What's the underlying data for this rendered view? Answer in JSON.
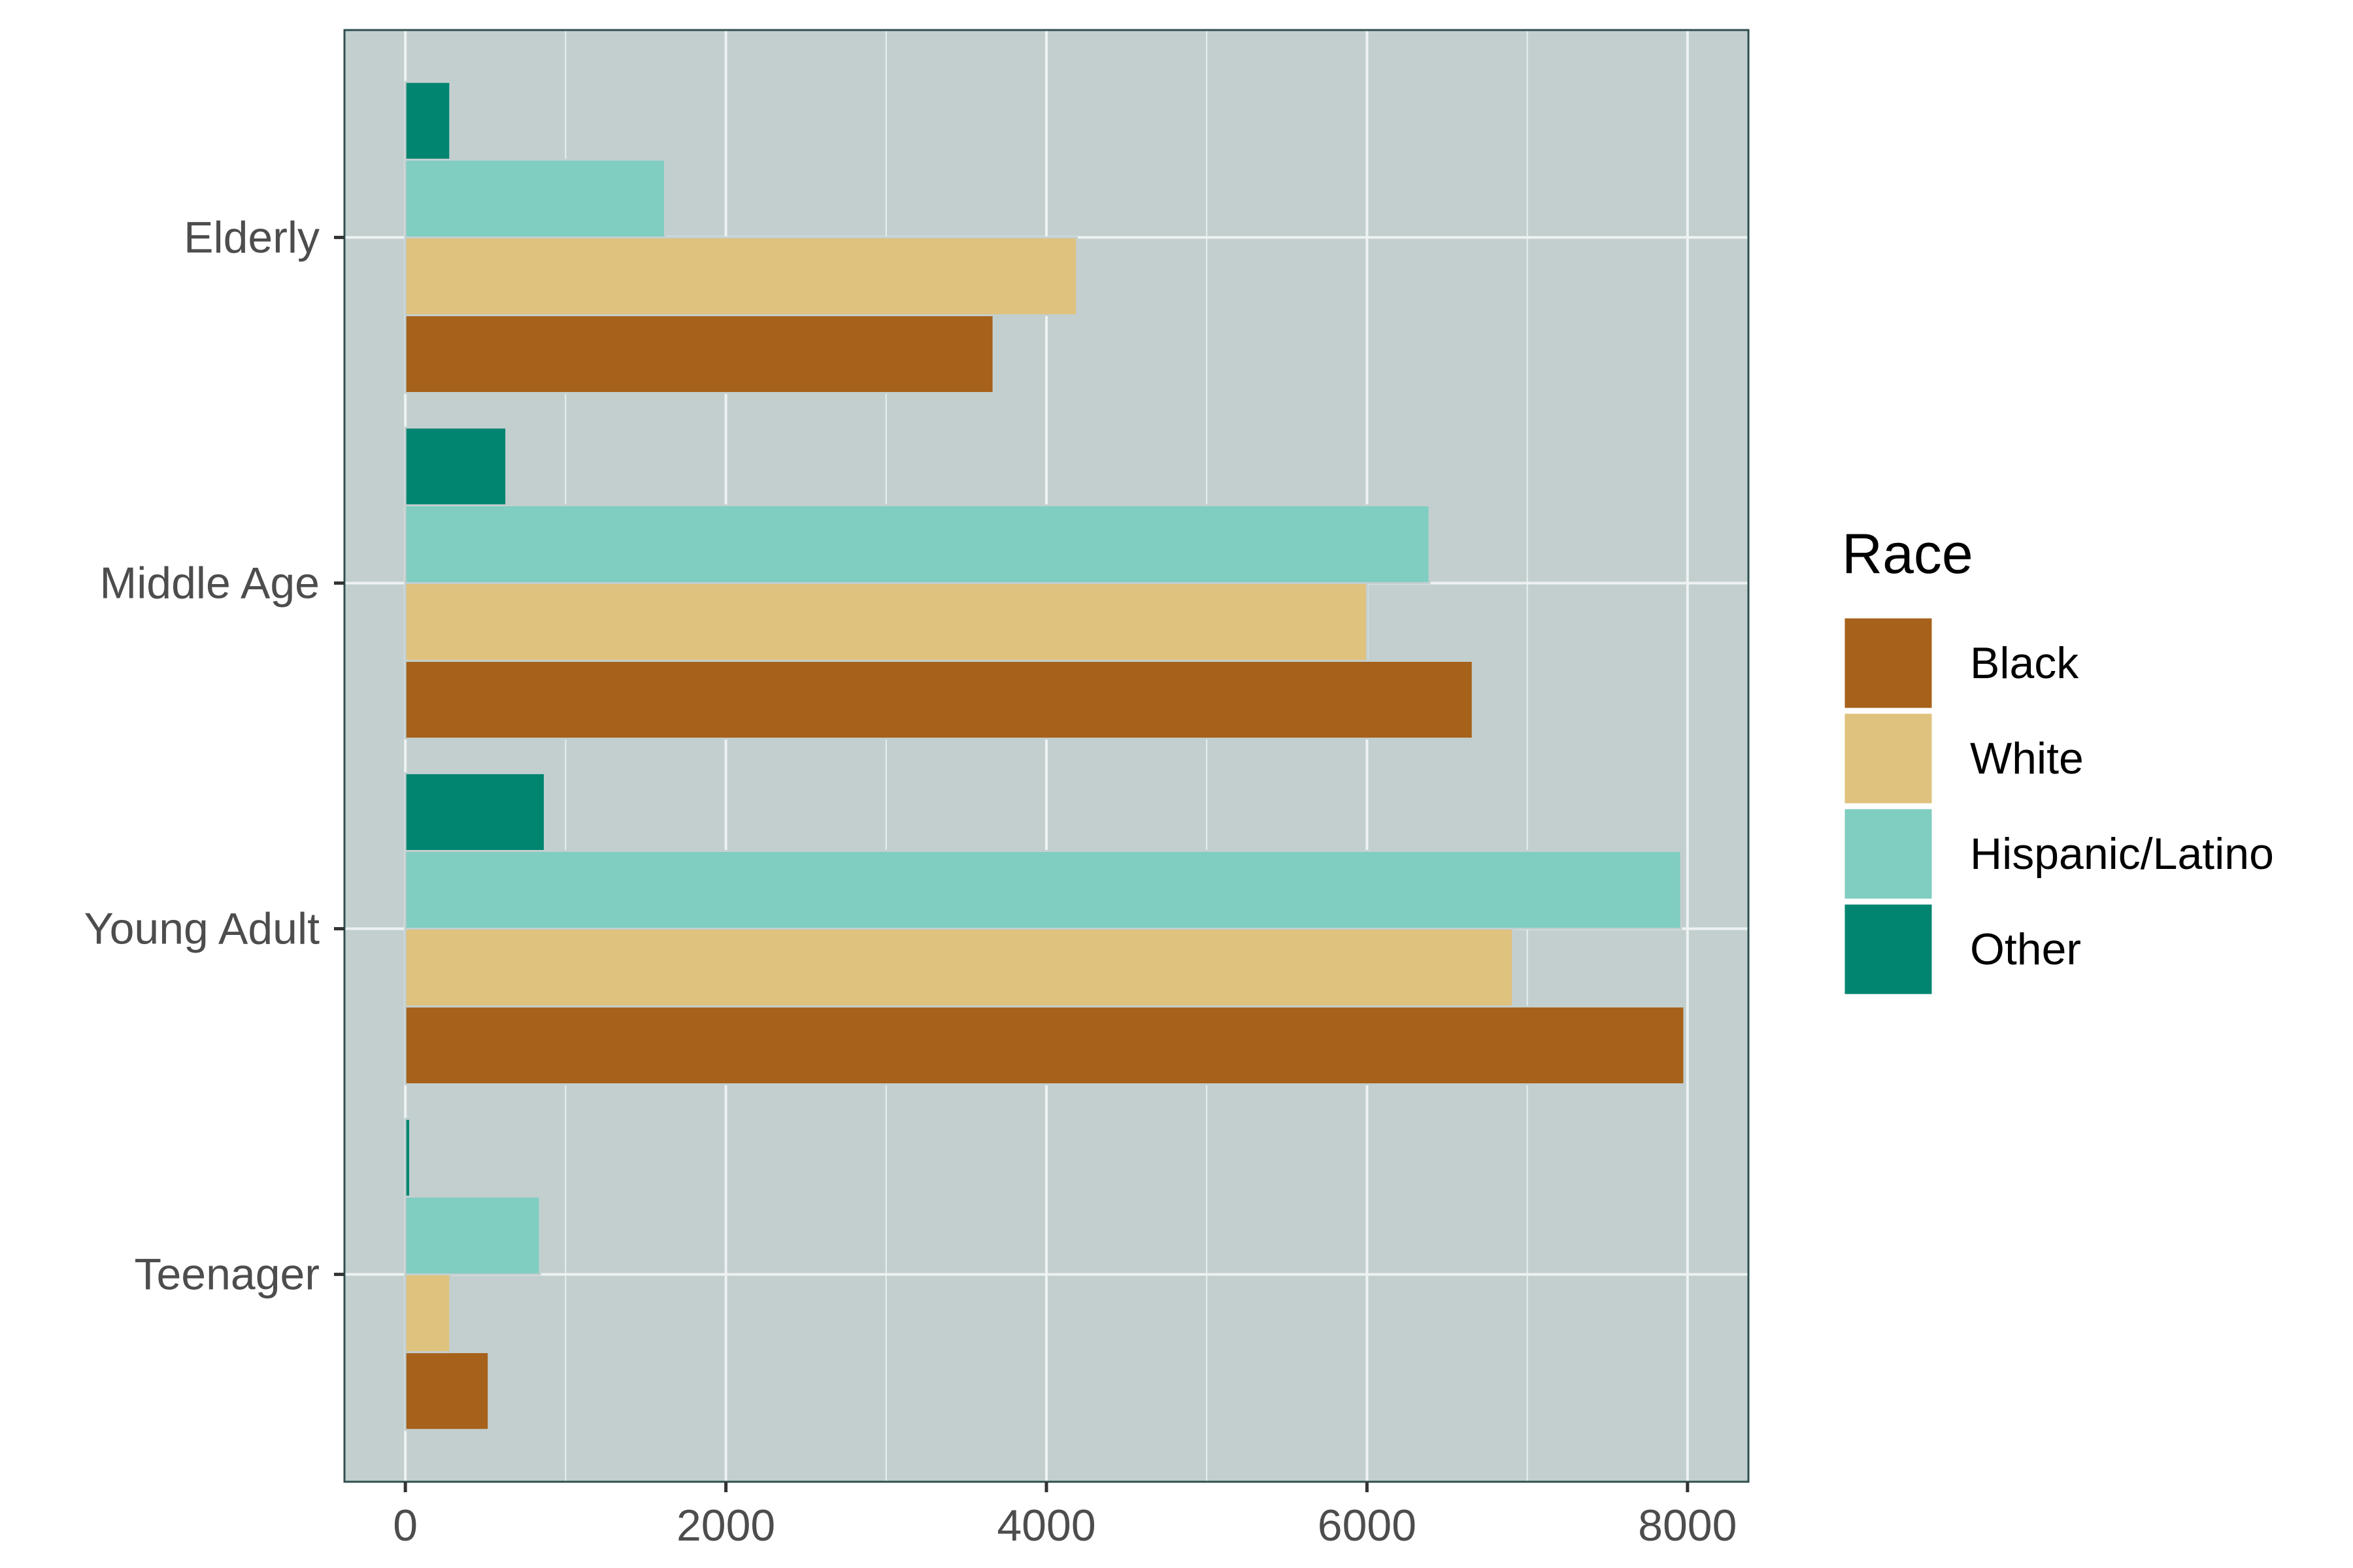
{
  "chart_data": {
    "type": "bar",
    "orientation": "horizontal",
    "categories": [
      "Teenager",
      "Young Adult",
      "Middle Age",
      "Elderly"
    ],
    "series": [
      {
        "name": "Black",
        "color": "#A6611A",
        "values": [
          520,
          7980,
          6660,
          3670
        ]
      },
      {
        "name": "White",
        "color": "#DFC27D",
        "values": [
          280,
          6910,
          6000,
          4190
        ]
      },
      {
        "name": "Hispanic/Latino",
        "color": "#80CDC1",
        "values": [
          840,
          7960,
          6390,
          1620
        ]
      },
      {
        "name": "Other",
        "color": "#018571",
        "values": [
          30,
          870,
          630,
          280
        ]
      }
    ],
    "xlim": [
      -380,
      8380
    ],
    "xticks": [
      0,
      2000,
      4000,
      6000,
      8000
    ],
    "xtick_labels": [
      "0",
      "2000",
      "4000",
      "6000",
      "8000"
    ],
    "legend": {
      "title": "Race",
      "position": "right"
    },
    "panel_background": "#C3CFCF",
    "grid": true
  }
}
